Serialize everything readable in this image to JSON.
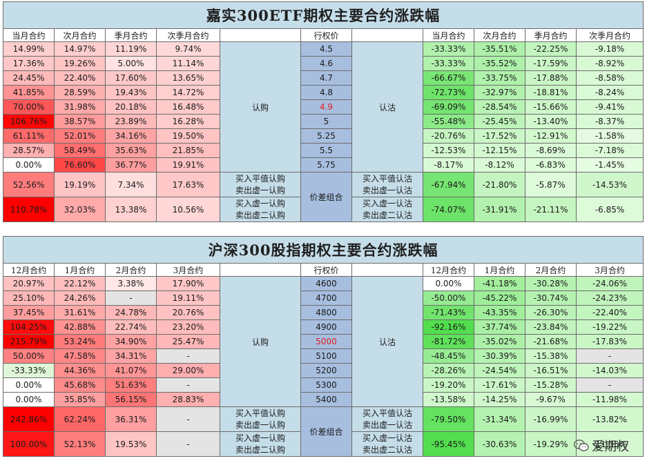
{
  "panel1": {
    "title": "嘉实300ETF期权主要合约涨跌幅",
    "left_headers": [
      "当月合约",
      "次月合约",
      "季月合约",
      "次季月合约"
    ],
    "right_headers": [
      "当月合约",
      "次月合约",
      "季月合约",
      "次季月合约"
    ],
    "strike_header": "行权价",
    "call_label": "认购",
    "put_label": "认沽",
    "combo_label": "价差组合",
    "highlight_strike_index": 4,
    "rows": [
      {
        "strike": "4.5",
        "calls": [
          "14.99%",
          "14.97%",
          "11.19%",
          "9.74%"
        ],
        "puts": [
          "-33.33%",
          "-35.51%",
          "-22.25%",
          "-9.18%"
        ]
      },
      {
        "strike": "4.6",
        "calls": [
          "17.36%",
          "19.26%",
          "5.00%",
          "11.14%"
        ],
        "puts": [
          "-33.33%",
          "-35.52%",
          "-17.59%",
          "-8.92%"
        ]
      },
      {
        "strike": "4.7",
        "calls": [
          "24.45%",
          "22.40%",
          "17.60%",
          "13.65%"
        ],
        "puts": [
          "-66.67%",
          "-33.75%",
          "-17.88%",
          "-8.58%"
        ]
      },
      {
        "strike": "4.8",
        "calls": [
          "41.85%",
          "28.59%",
          "19.43%",
          "14.72%"
        ],
        "puts": [
          "-72.73%",
          "-32.97%",
          "-18.81%",
          "-8.24%"
        ]
      },
      {
        "strike": "4.9",
        "calls": [
          "70.00%",
          "31.98%",
          "20.18%",
          "16.48%"
        ],
        "puts": [
          "-69.09%",
          "-28.54%",
          "-15.66%",
          "-9.41%"
        ]
      },
      {
        "strike": "5",
        "calls": [
          "106.76%",
          "38.57%",
          "23.89%",
          "16.28%"
        ],
        "puts": [
          "-55.48%",
          "-25.45%",
          "-13.40%",
          "-8.37%"
        ]
      },
      {
        "strike": "5.25",
        "calls": [
          "61.11%",
          "52.01%",
          "34.16%",
          "19.50%"
        ],
        "puts": [
          "-20.76%",
          "-17.52%",
          "-12.91%",
          "-1.58%"
        ]
      },
      {
        "strike": "5.5",
        "calls": [
          "28.57%",
          "58.49%",
          "35.63%",
          "21.85%"
        ],
        "puts": [
          "-12.53%",
          "-12.15%",
          "-8.69%",
          "-7.18%"
        ]
      },
      {
        "strike": "5.75",
        "calls": [
          "0.00%",
          "76.60%",
          "36.77%",
          "19.91%"
        ],
        "puts": [
          "-8.17%",
          "-8.12%",
          "-6.83%",
          "-1.45%"
        ]
      }
    ],
    "combos": [
      {
        "call_desc": [
          "买入平值认购",
          "卖出虚一认购"
        ],
        "put_desc": [
          "买入平值认沽",
          "卖出虚一认沽"
        ],
        "calls": [
          "52.56%",
          "19.19%",
          "7.34%",
          "17.63%"
        ],
        "puts": [
          "-67.94%",
          "-21.80%",
          "-5.87%",
          "-14.53%"
        ]
      },
      {
        "call_desc": [
          "买入虚一认购",
          "卖出虚二认购"
        ],
        "put_desc": [
          "买入虚一认沽",
          "卖出虚二认沽"
        ],
        "calls": [
          "110.78%",
          "32.03%",
          "13.38%",
          "10.56%"
        ],
        "puts": [
          "-74.07%",
          "-31.91%",
          "-21.11%",
          "-6.85%"
        ]
      }
    ]
  },
  "panel2": {
    "title": "沪深300股指期权主要合约涨跌幅",
    "left_headers": [
      "12月合约",
      "1月合约",
      "2月合约",
      "3月合约"
    ],
    "right_headers": [
      "12月合约",
      "1月合约",
      "2月合约",
      "3月合约"
    ],
    "strike_header": "行权价",
    "call_label": "认购",
    "put_label": "认沽",
    "combo_label": "价差组合",
    "highlight_strike_index": 4,
    "rows": [
      {
        "strike": "4600",
        "calls": [
          "20.97%",
          "22.12%",
          "3.38%",
          "17.90%"
        ],
        "puts": [
          "0.00%",
          "-41.18%",
          "-30.28%",
          "-24.06%"
        ]
      },
      {
        "strike": "4700",
        "calls": [
          "25.10%",
          "24.26%",
          "-",
          "19.11%"
        ],
        "puts": [
          "-50.00%",
          "-45.22%",
          "-30.74%",
          "-24.23%"
        ]
      },
      {
        "strike": "4800",
        "calls": [
          "37.45%",
          "31.61%",
          "24.78%",
          "20.76%"
        ],
        "puts": [
          "-71.43%",
          "-43.35%",
          "-26.30%",
          "-22.40%"
        ]
      },
      {
        "strike": "4900",
        "calls": [
          "104.25%",
          "42.88%",
          "22.74%",
          "23.20%"
        ],
        "puts": [
          "-92.16%",
          "-37.74%",
          "-23.84%",
          "-19.22%"
        ]
      },
      {
        "strike": "5000",
        "calls": [
          "215.79%",
          "53.24%",
          "34.90%",
          "25.47%"
        ],
        "puts": [
          "-81.72%",
          "-35.02%",
          "-21.68%",
          "-17.83%"
        ]
      },
      {
        "strike": "5100",
        "calls": [
          "50.00%",
          "47.58%",
          "34.31%",
          "-"
        ],
        "puts": [
          "-48.45%",
          "-30.39%",
          "-15.38%",
          "-"
        ]
      },
      {
        "strike": "5200",
        "calls": [
          "-33.33%",
          "44.36%",
          "41.07%",
          "29.00%"
        ],
        "puts": [
          "-28.26%",
          "-24.54%",
          "-16.51%",
          "-14.03%"
        ]
      },
      {
        "strike": "5300",
        "calls": [
          "0.00%",
          "45.68%",
          "51.63%",
          "-"
        ],
        "puts": [
          "-19.20%",
          "-17.61%",
          "-15.28%",
          "-"
        ]
      },
      {
        "strike": "5400",
        "calls": [
          "0.00%",
          "35.85%",
          "56.15%",
          "28.83%"
        ],
        "puts": [
          "-13.58%",
          "-14.25%",
          "-9.67%",
          "-11.98%"
        ]
      }
    ],
    "combos": [
      {
        "call_desc": [
          "买入平值认购",
          "卖出虚一认购"
        ],
        "put_desc": [
          "买入平值认沽",
          "卖出虚一认沽"
        ],
        "calls": [
          "242.86%",
          "62.24%",
          "36.31%",
          "-"
        ],
        "puts": [
          "-79.50%",
          "-31.34%",
          "-16.99%",
          "-13.82%"
        ]
      },
      {
        "call_desc": [
          "买入虚一认购",
          "卖出虚二认购"
        ],
        "put_desc": [
          "买入虚一认沽",
          "卖出虚二认沽"
        ],
        "calls": [
          "100.00%",
          "52.13%",
          "19.53%",
          "-"
        ],
        "puts": [
          "-95.45%",
          "-30.63%",
          "-19.29%",
          "-11.35%"
        ]
      }
    ]
  },
  "watermark": {
    "brand": "爱期权",
    "icon": "wechat-icon"
  },
  "colors": {
    "title_bg": "#c5dde9",
    "strike_bg": "#a7bedf",
    "highlight": "#e02020",
    "na_bg": "#e4e4e4"
  }
}
